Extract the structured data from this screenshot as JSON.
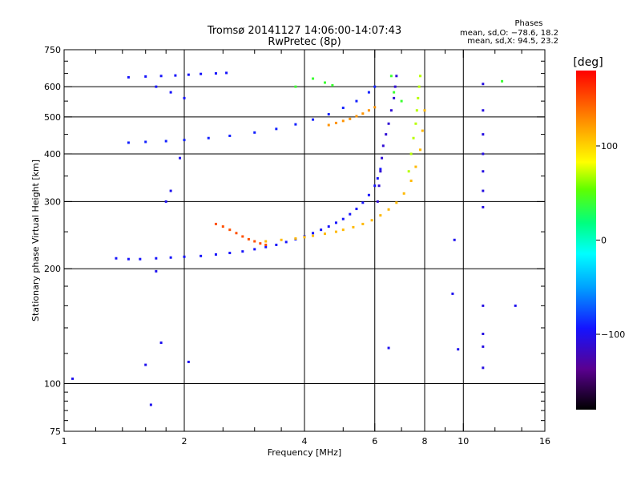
{
  "chart_data": {
    "type": "scatter",
    "title_line1": "Tromsø 20141127 14:06:00-14:07:43",
    "title_line2": "RwPretec (8p)",
    "xlabel": "Frequency [MHz]",
    "ylabel": "Stationary phase Virtual Height [km]",
    "xscale": "log",
    "yscale": "log",
    "xlim": [
      1,
      16
    ],
    "ylim": [
      75,
      750
    ],
    "x_ticks": [
      1,
      2,
      4,
      6,
      8,
      10,
      16
    ],
    "y_ticks": [
      75,
      100,
      200,
      300,
      400,
      500,
      600,
      750
    ],
    "grid_x": [
      2,
      4,
      6,
      8,
      10
    ],
    "grid_y": [
      100,
      200,
      300,
      400,
      500,
      600
    ],
    "grid": true,
    "stats": {
      "title": "Phases",
      "line1": "mean, sd,O: −78.6, 18.2",
      "line2": "mean, sd,X:  94.5, 23.2"
    },
    "colorbar": {
      "label": "[deg]",
      "range": [
        -180,
        180
      ],
      "ticks": [
        {
          "value": 100,
          "label": "100"
        },
        {
          "value": 0,
          "label": "0"
        },
        {
          "value": -100,
          "label": "−100"
        }
      ]
    },
    "series": [
      {
        "trace": "o-f1-lower",
        "phase": -95,
        "x": [
          1.35,
          1.45,
          1.55,
          1.7,
          1.85,
          2.0,
          2.2,
          2.4,
          2.6,
          2.8,
          3.0,
          3.2,
          3.4,
          3.6,
          3.8,
          4.0,
          4.2,
          4.4,
          4.6,
          4.8,
          5.0,
          5.2,
          5.4,
          5.6,
          5.8,
          6.0,
          6.1,
          6.2
        ],
        "y": [
          213,
          212,
          212,
          213,
          214,
          215,
          216,
          218,
          220,
          222,
          225,
          228,
          231,
          235,
          239,
          243,
          248,
          253,
          258,
          264,
          270,
          278,
          287,
          298,
          312,
          330,
          345,
          365
        ]
      },
      {
        "trace": "o-f2-upper",
        "phase": -90,
        "x": [
          1.45,
          1.6,
          1.8,
          2.0,
          2.3,
          2.6,
          3.0,
          3.4,
          3.8,
          4.2,
          4.6,
          5.0,
          5.4,
          5.8,
          6.0
        ],
        "y": [
          428,
          430,
          432,
          435,
          440,
          446,
          455,
          465,
          478,
          492,
          508,
          528,
          550,
          580,
          600
        ]
      },
      {
        "trace": "x-f1",
        "phase": 110,
        "x": [
          3.2,
          3.5,
          3.8,
          4.0,
          4.2,
          4.5,
          4.8,
          5.0,
          5.3,
          5.6,
          5.9,
          6.2,
          6.5,
          6.8,
          7.1,
          7.4,
          7.6,
          7.8,
          7.9,
          8.0
        ],
        "y": [
          236,
          238,
          240,
          242,
          244,
          247,
          250,
          253,
          257,
          262,
          268,
          276,
          286,
          298,
          315,
          340,
          370,
          410,
          460,
          520
        ]
      },
      {
        "trace": "x-f2",
        "phase": 125,
        "x": [
          4.6,
          4.8,
          5.0,
          5.2,
          5.4,
          5.6,
          5.8,
          6.0
        ],
        "y": [
          476,
          482,
          488,
          494,
          502,
          510,
          520,
          530
        ]
      },
      {
        "trace": "spread-f-vertical",
        "phase": -110,
        "x": [
          6.1,
          6.15,
          6.2,
          6.25,
          6.3,
          6.4,
          6.5,
          6.6,
          6.7,
          6.75,
          6.8
        ],
        "y": [
          300,
          330,
          360,
          390,
          420,
          450,
          480,
          520,
          560,
          600,
          640
        ]
      },
      {
        "trace": "x-spread-vertical",
        "phase": 70,
        "x": [
          7.3,
          7.4,
          7.5,
          7.6,
          7.65,
          7.7,
          7.75,
          7.8
        ],
        "y": [
          360,
          400,
          440,
          480,
          520,
          560,
          600,
          640
        ]
      },
      {
        "trace": "oblique-echo",
        "phase": 150,
        "x": [
          2.4,
          2.5,
          2.6,
          2.7,
          2.8,
          2.9,
          3.0,
          3.1,
          3.2
        ],
        "y": [
          262,
          258,
          253,
          248,
          243,
          239,
          236,
          233,
          231
        ]
      },
      {
        "trace": "interference-11mhz",
        "phase": -105,
        "x": [
          11.2,
          11.2,
          11.2,
          11.2,
          11.2,
          11.2,
          11.2,
          11.2,
          11.2,
          11.2,
          11.2
        ],
        "y": [
          110,
          125,
          135,
          160,
          290,
          320,
          360,
          400,
          450,
          520,
          610
        ]
      },
      {
        "trace": "scattered",
        "phase": -100,
        "x": [
          1.05,
          1.6,
          1.65,
          1.75,
          1.8,
          2.05,
          9.5,
          9.7,
          9.4,
          6.5,
          13.5,
          1.7,
          1.85,
          1.95
        ],
        "y": [
          103,
          112,
          88,
          128,
          300,
          114,
          238,
          123,
          172,
          124,
          160,
          197,
          320,
          390
        ]
      },
      {
        "trace": "top-cluster",
        "phase": -95,
        "x": [
          1.45,
          1.6,
          1.75,
          1.9,
          2.05,
          2.2,
          2.4,
          2.55,
          1.7,
          1.85,
          2.0
        ],
        "y": [
          635,
          638,
          640,
          642,
          645,
          648,
          650,
          652,
          600,
          580,
          560
        ]
      },
      {
        "trace": "top-cluster-warm",
        "phase": 40,
        "x": [
          3.8,
          4.2,
          4.5,
          4.7,
          6.6,
          6.7,
          7.0,
          12.5
        ],
        "y": [
          600,
          630,
          615,
          605,
          640,
          580,
          550,
          620
        ]
      }
    ]
  }
}
